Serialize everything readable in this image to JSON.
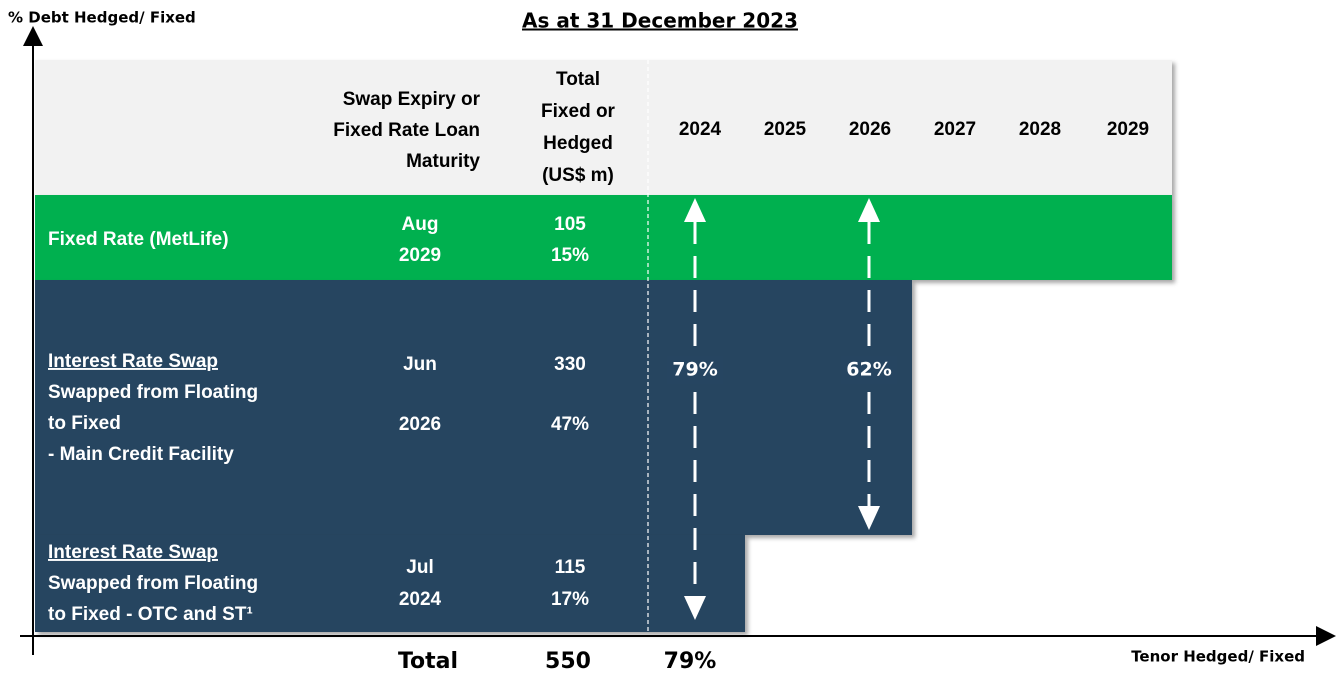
{
  "axes": {
    "y_label": "% Debt Hedged/ Fixed",
    "x_label": "Tenor Hedged/ Fixed"
  },
  "title": "As at 31 December 2023",
  "header": {
    "maturity": [
      "Swap Expiry or",
      "Fixed Rate Loan",
      "Maturity"
    ],
    "total": [
      "Total",
      "Fixed or",
      "Hedged",
      "(US$ m)"
    ],
    "years": [
      "2024",
      "2025",
      "2026",
      "2027",
      "2028",
      "2029"
    ]
  },
  "rows": [
    {
      "label": [
        {
          "text": "Fixed Rate (MetLife)"
        }
      ],
      "maturity": [
        "Aug",
        "2029"
      ],
      "amount": "105",
      "share": "15%"
    },
    {
      "label": [
        {
          "text": "Interest Rate Swap",
          "underline": true
        },
        {
          "text": "Swapped from Floating"
        },
        {
          "text": "to Fixed"
        },
        {
          "text": "- Main Credit Facility"
        }
      ],
      "maturity": [
        "Jun",
        "2026"
      ],
      "amount": "330",
      "share": "47%"
    },
    {
      "label": [
        {
          "text": "Interest Rate Swap",
          "underline": true
        },
        {
          "text": "Swapped from Floating"
        },
        {
          "text": "to Fixed - OTC and ST¹"
        }
      ],
      "maturity": [
        "Jul",
        "2024"
      ],
      "amount": "115",
      "share": "17%"
    }
  ],
  "hedges": [
    {
      "pct": "79%"
    },
    {
      "pct": "62%"
    }
  ],
  "totals": {
    "label": "Total",
    "amount": "550",
    "pct": "79%"
  }
}
